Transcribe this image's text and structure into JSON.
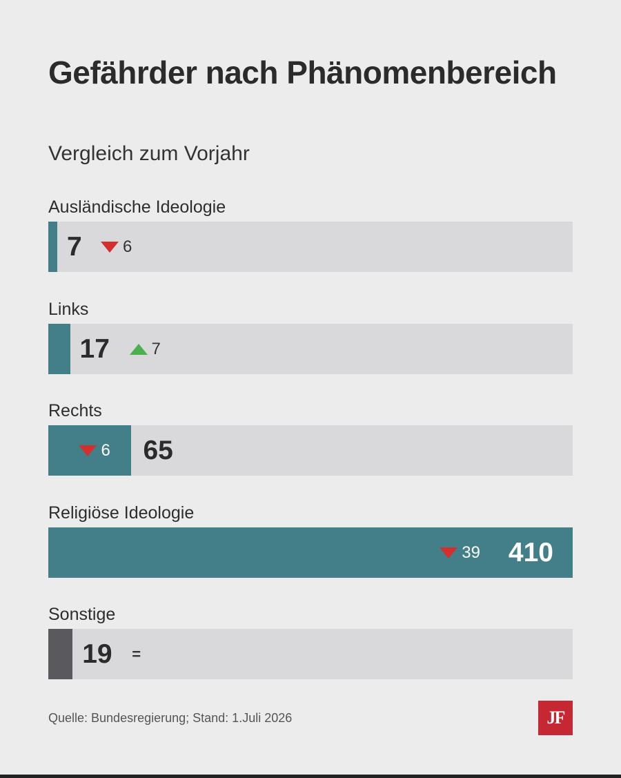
{
  "colors": {
    "bar_teal": "#437f89",
    "bar_grey": "#5a595e",
    "track": "#d9d9db",
    "down": "#d32f2f",
    "up": "#4caf50",
    "logo_bg": "#c62833"
  },
  "chart_data": {
    "type": "bar",
    "title": "Gefährder nach Phänomenbereich",
    "subtitle": "Vergleich zum Vorjahr",
    "categories": [
      "Ausländische Ideologie",
      "Links",
      "Rechts",
      "Religiöse Ideologie",
      "Sonstige"
    ],
    "values": [
      7,
      17,
      65,
      410,
      19
    ],
    "changes": [
      {
        "direction": "down",
        "amount": "6"
      },
      {
        "direction": "up",
        "amount": "7"
      },
      {
        "direction": "down",
        "amount": "6"
      },
      {
        "direction": "down",
        "amount": "39"
      },
      {
        "direction": "equal",
        "amount": "="
      }
    ],
    "value_labels": [
      "7",
      "17",
      "65",
      "410",
      "19"
    ],
    "xlim": [
      0,
      410
    ],
    "grid": false
  },
  "footer": {
    "source": "Quelle: Bundesregierung; Stand: 1.Juli 2026",
    "logo_text": "JF"
  }
}
